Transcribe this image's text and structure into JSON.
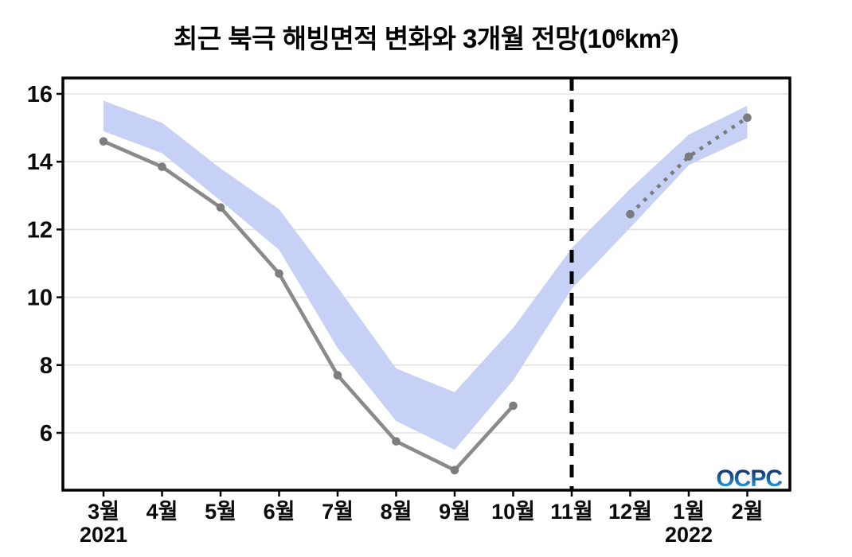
{
  "title": {
    "prefix": "최근 북극 해빙면적 변화와 3개월 전망(10",
    "sup1": "6",
    "mid": "km",
    "sup2": "2",
    "suffix": ")"
  },
  "branding": {
    "logo_text": "OCPC"
  },
  "chart_data": {
    "type": "line",
    "title": "최근 북극 해빙면적 변화와 3개월 전망(10^6 km^2)",
    "xlabel": "",
    "ylabel": "",
    "categories": [
      "3월",
      "4월",
      "5월",
      "6월",
      "7월",
      "8월",
      "9월",
      "10월",
      "11월",
      "12월",
      "1월",
      "2월"
    ],
    "year_labels": [
      {
        "label": "2021",
        "category_index": 0
      },
      {
        "label": "2022",
        "category_index": 10
      }
    ],
    "yticks": [
      6,
      8,
      10,
      12,
      14,
      16
    ],
    "ylim": [
      4.3,
      16.5
    ],
    "grid": true,
    "legend_position": "none",
    "series": [
      {
        "name": "observed",
        "style": "solid",
        "marker": "circle",
        "color": "#8a8a8a",
        "marker_color": "#7d7d7d",
        "values": [
          14.6,
          13.85,
          12.65,
          10.7,
          7.7,
          5.75,
          4.9,
          6.8,
          null,
          null,
          null,
          null
        ]
      },
      {
        "name": "forecast",
        "style": "dotted",
        "marker": "circle",
        "color": "#7b7b7b",
        "marker_color": "#7b7b7b",
        "values": [
          null,
          null,
          null,
          null,
          null,
          null,
          null,
          null,
          null,
          12.45,
          14.15,
          15.3
        ]
      }
    ],
    "band": {
      "name": "climatology-range",
      "color": "#c7d1f6",
      "upper": [
        15.8,
        15.15,
        13.8,
        12.6,
        10.3,
        7.9,
        7.2,
        9.1,
        11.45,
        13.2,
        14.8,
        15.65
      ],
      "lower": [
        14.9,
        14.25,
        12.85,
        11.4,
        8.5,
        6.35,
        5.5,
        7.55,
        10.25,
        12.05,
        13.9,
        14.7
      ]
    },
    "vline": {
      "category_index": 8,
      "style": "dashed",
      "color": "#060606"
    },
    "logo_gradient": [
      "#222c55",
      "#153f7e",
      "#1b62a6",
      "#2090cb",
      "#55c8ea"
    ]
  }
}
